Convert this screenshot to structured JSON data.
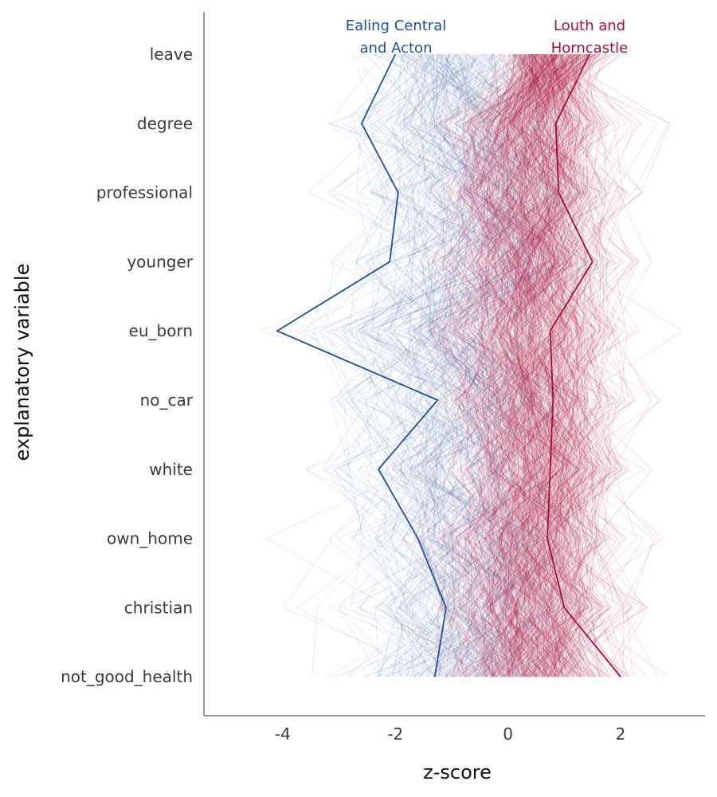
{
  "chart_data": {
    "type": "line",
    "title": "",
    "xlabel": "z-score",
    "ylabel": "explanatory variable",
    "xlim": [
      -5.4,
      3.5
    ],
    "x_ticks": [
      -4,
      -2,
      0,
      2
    ],
    "x_tick_labels": [
      "-4",
      "-2",
      "0",
      "2"
    ],
    "categories": [
      "leave",
      "degree",
      "professional",
      "younger",
      "eu_born",
      "no_car",
      "white",
      "own_home",
      "christian",
      "not_good_health"
    ],
    "grid": false,
    "legend": "none",
    "colors": {
      "remain": "#1f4e9e",
      "leave": "#a50f3a",
      "axis": "#333333"
    },
    "background_lines": {
      "description_count": 632,
      "groups": [
        "remain",
        "leave"
      ]
    },
    "series": [
      {
        "name": "Ealing Central and Acton",
        "label_lines": [
          "Ealing Central",
          "and Acton"
        ],
        "color": "#1f4e9e",
        "values": [
          -2.0,
          -2.6,
          -1.95,
          -2.1,
          -4.1,
          -1.25,
          -2.3,
          -1.6,
          -1.1,
          -1.3
        ]
      },
      {
        "name": "Louth and Horncastle",
        "label_lines": [
          "Louth and",
          "Horncastle"
        ],
        "color": "#a50f3a",
        "values": [
          1.45,
          0.85,
          0.9,
          1.5,
          0.75,
          0.8,
          0.75,
          0.7,
          1.0,
          2.0
        ]
      }
    ]
  }
}
